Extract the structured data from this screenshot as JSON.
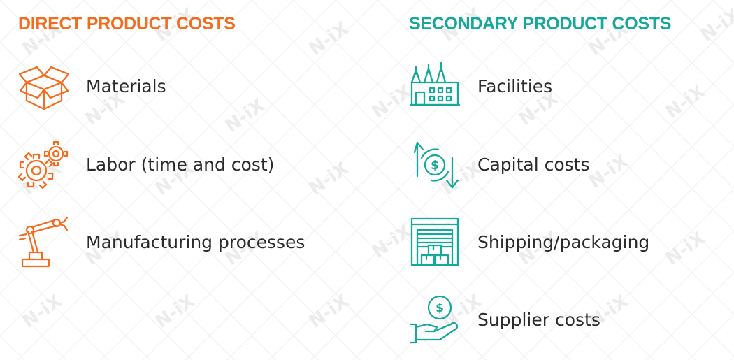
{
  "watermark": "N-iX",
  "left": {
    "title": "DIRECT PRODUCT COSTS",
    "color": "#f26d1f",
    "items": [
      {
        "label": "Materials",
        "icon": "open-box-icon"
      },
      {
        "label": "Labor (time and cost)",
        "icon": "gears-icon"
      },
      {
        "label": "Manufacturing processes",
        "icon": "robotic-arm-icon"
      }
    ]
  },
  "right": {
    "title": "SECONDARY PRODUCT COSTS",
    "color": "#16a89a",
    "items": [
      {
        "label": "Facilities",
        "icon": "factory-icon"
      },
      {
        "label": "Capital costs",
        "icon": "dollar-cycle-icon"
      },
      {
        "label": "Shipping/packaging",
        "icon": "warehouse-icon"
      },
      {
        "label": "Supplier costs",
        "icon": "hand-coin-icon"
      }
    ]
  }
}
